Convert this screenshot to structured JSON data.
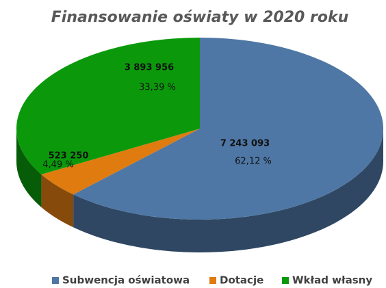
{
  "chart_data": {
    "type": "pie",
    "title": "Finansowanie oświaty w 2020 roku",
    "categories": [
      "Subwencja oświatowa",
      "Dotacje",
      "Wkład własny"
    ],
    "values": [
      7243093,
      523250,
      3893956
    ],
    "value_labels": [
      "7 243 093",
      "523 250",
      "3 893 956"
    ],
    "percentages": [
      62.12,
      4.49,
      33.39
    ],
    "percentage_labels": [
      "62,12 %",
      "4,49 %",
      "33,39 %"
    ],
    "colors": [
      "#4e77a5",
      "#e07b10",
      "#0b990b"
    ],
    "legend": "bottom"
  }
}
